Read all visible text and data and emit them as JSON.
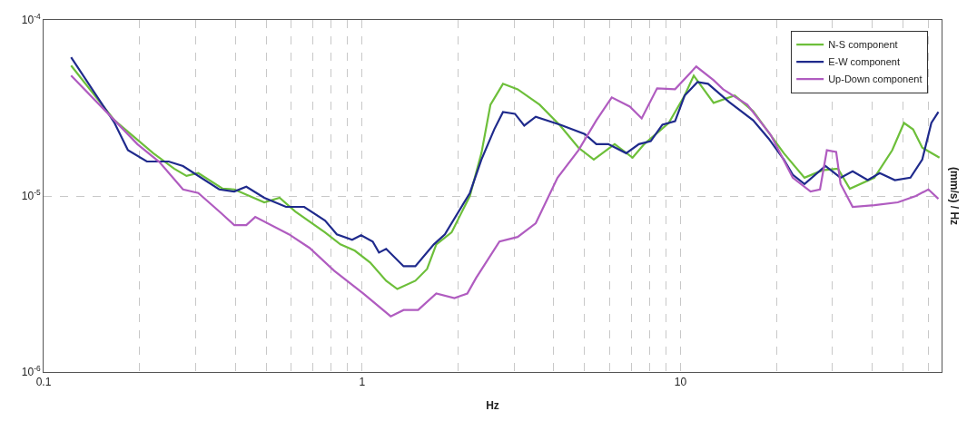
{
  "chart_data": {
    "type": "line",
    "xlabel": "Hz",
    "ylabel": "(mm/s) / Hz",
    "log": "xy",
    "grid": true,
    "legend": "top right",
    "line_style": "solid",
    "xlim": [
      0.1,
      66
    ],
    "ylim": [
      1e-06,
      0.0001
    ],
    "xticks": [
      0.1,
      {
        "value": 0.2,
        "label": null
      },
      {
        "value": 0.3,
        "label": null
      },
      {
        "value": 0.4,
        "label": null
      },
      {
        "value": 0.5,
        "label": null
      },
      {
        "value": 0.6,
        "label": null
      },
      {
        "value": 0.7,
        "label": null
      },
      {
        "value": 0.8,
        "label": null
      },
      {
        "value": 0.9,
        "label": null
      },
      1,
      {
        "value": 2,
        "label": null
      },
      {
        "value": 3,
        "label": null
      },
      {
        "value": 4,
        "label": null
      },
      {
        "value": 5,
        "label": null
      },
      {
        "value": 6,
        "label": null
      },
      {
        "value": 7,
        "label": null
      },
      {
        "value": 8,
        "label": null
      },
      {
        "value": 9,
        "label": null
      },
      10,
      {
        "value": 20,
        "label": null
      },
      {
        "value": 30,
        "label": null
      },
      {
        "value": 40,
        "label": null
      },
      {
        "value": 50,
        "label": null
      },
      {
        "value": 60,
        "label": null
      }
    ],
    "yticks": [
      {
        "value": 1e-06,
        "label": "10$^{-6}$"
      },
      {
        "value": 1e-05,
        "label": "10$^{-5}$"
      },
      {
        "value": 0.0001,
        "label": "10$^{-4}$"
      }
    ],
    "series": [
      {
        "name": "N-S component",
        "color": "#6dbf3a",
        "x": [
          0.122,
          0.167,
          0.221,
          0.257,
          0.281,
          0.306,
          0.365,
          0.397,
          0.493,
          0.551,
          0.617,
          0.765,
          0.855,
          0.949,
          1.06,
          1.19,
          1.29,
          1.47,
          1.6,
          1.71,
          1.91,
          2.18,
          2.37,
          2.53,
          2.77,
          3.08,
          3.61,
          4.19,
          4.78,
          5.34,
          6.21,
          7.07,
          7.69,
          9.18,
          10.3,
          11.0,
          12.7,
          14.8,
          16.9,
          21.1,
          24.5,
          27.9,
          31.2,
          34.0,
          40.6,
          46.2,
          50.3,
          53.7,
          57.4,
          65
        ],
        "values": [
          5.51e-05,
          2.69e-05,
          1.75e-05,
          1.43e-05,
          1.3e-05,
          1.35e-05,
          1.1e-05,
          1.09e-05,
          9.2e-06,
          9.77e-06,
          8.17e-06,
          6.21e-06,
          5.31e-06,
          4.89e-06,
          4.19e-06,
          3.3e-06,
          2.96e-06,
          3.3e-06,
          3.85e-06,
          5.31e-06,
          6.21e-06,
          1e-05,
          1.75e-05,
          3.3e-05,
          4.34e-05,
          4.04e-05,
          3.3e-05,
          2.51e-05,
          1.88e-05,
          1.61e-05,
          1.97e-05,
          1.65e-05,
          1.97e-05,
          2.6e-05,
          3.72e-05,
          4.83e-05,
          3.38e-05,
          3.72e-05,
          3.03e-05,
          1.75e-05,
          1.27e-05,
          1.4e-05,
          1.43e-05,
          1.1e-05,
          1.27e-05,
          1.82e-05,
          2.6e-05,
          2.39e-05,
          1.88e-05,
          1.65e-05
        ]
      },
      {
        "name": "E-W component",
        "color": "#1f2a8c",
        "x": [
          0.122,
          0.167,
          0.184,
          0.211,
          0.247,
          0.274,
          0.356,
          0.397,
          0.433,
          0.493,
          0.577,
          0.658,
          0.765,
          0.833,
          0.931,
          0.993,
          1.08,
          1.13,
          1.19,
          1.35,
          1.47,
          1.68,
          1.82,
          2.18,
          2.37,
          2.6,
          2.77,
          3.02,
          3.23,
          3.51,
          4.19,
          5.0,
          5.44,
          5.93,
          6.75,
          7.4,
          8.06,
          8.77,
          9.61,
          10.3,
          11.3,
          12.2,
          14.2,
          16.9,
          18.9,
          21.1,
          22.5,
          24.5,
          28.5,
          31.8,
          34.7,
          38.7,
          42.2,
          47.1,
          52.7,
          57.4,
          61.3,
          64.5
        ],
        "values": [
          6.13e-05,
          2.6e-05,
          1.82e-05,
          1.57e-05,
          1.57e-05,
          1.48e-05,
          1.09e-05,
          1.06e-05,
          1.13e-05,
          9.77e-06,
          8.67e-06,
          8.67e-06,
          7.25e-06,
          6.06e-06,
          5.64e-06,
          5.99e-06,
          5.51e-06,
          4.77e-06,
          5.01e-06,
          3.99e-06,
          3.99e-06,
          5.31e-06,
          6.06e-06,
          1.04e-05,
          1.61e-05,
          2.39e-05,
          3e-05,
          2.93e-05,
          2.51e-05,
          2.82e-05,
          2.54e-05,
          2.25e-05,
          1.97e-05,
          1.97e-05,
          1.75e-05,
          1.97e-05,
          2.05e-05,
          2.54e-05,
          2.66e-05,
          3.72e-05,
          4.44e-05,
          4.34e-05,
          3.42e-05,
          2.69e-05,
          2.12e-05,
          1.61e-05,
          1.32e-05,
          1.17e-05,
          1.48e-05,
          1.27e-05,
          1.38e-05,
          1.23e-05,
          1.35e-05,
          1.23e-05,
          1.27e-05,
          1.61e-05,
          2.6e-05,
          3e-05
        ]
      },
      {
        "name": "Up-Down component",
        "color": "#b05cc0",
        "x": [
          0.122,
          0.167,
          0.197,
          0.231,
          0.274,
          0.306,
          0.356,
          0.397,
          0.433,
          0.462,
          0.589,
          0.684,
          0.817,
          1.01,
          1.23,
          1.35,
          1.5,
          1.71,
          1.95,
          2.14,
          2.28,
          2.7,
          3.08,
          3.51,
          4.11,
          4.78,
          5.44,
          6.08,
          6.93,
          7.55,
          8.44,
          9.61,
          11.2,
          12.7,
          13.6,
          16.2,
          19.2,
          22.5,
          25.6,
          27.4,
          28.8,
          30.8,
          31.8,
          34.7,
          40.6,
          48.1,
          54.8,
          60.0,
          64.5
        ],
        "values": [
          4.83e-05,
          2.69e-05,
          1.97e-05,
          1.56e-05,
          1.09e-05,
          1.04e-05,
          8.17e-06,
          6.83e-06,
          6.83e-06,
          7.6e-06,
          6.06e-06,
          5.07e-06,
          3.76e-06,
          2.79e-06,
          2.07e-06,
          2.25e-06,
          2.25e-06,
          2.79e-06,
          2.63e-06,
          2.79e-06,
          3.42e-06,
          5.51e-06,
          5.85e-06,
          7e-06,
          1.27e-05,
          1.82e-05,
          2.69e-05,
          3.63e-05,
          3.22e-05,
          2.76e-05,
          4.09e-05,
          4.04e-05,
          5.44e-05,
          4.55e-05,
          4.04e-05,
          3.3e-05,
          2.22e-05,
          1.27e-05,
          1.06e-05,
          1.09e-05,
          1.82e-05,
          1.78e-05,
          1.17e-05,
          8.67e-06,
          8.87e-06,
          9.2e-06,
          1e-05,
          1.09e-05,
          9.64e-06
        ]
      }
    ]
  }
}
